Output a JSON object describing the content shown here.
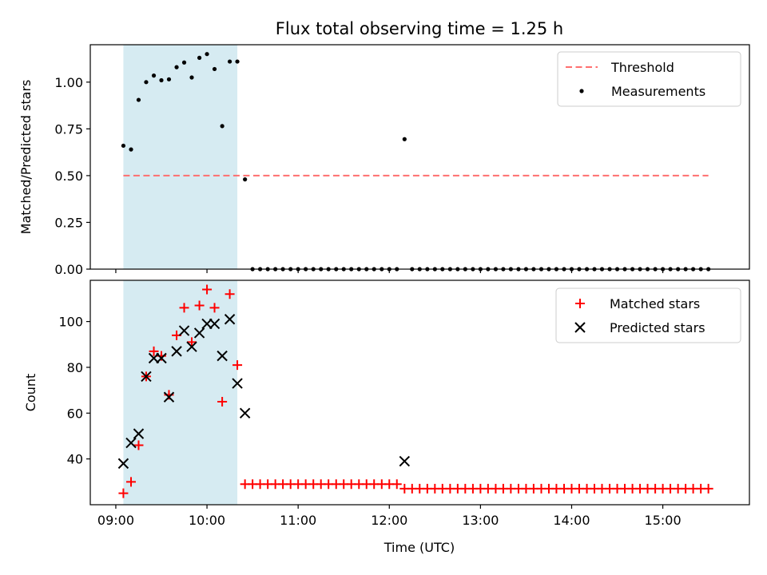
{
  "chart_data": {
    "title": "Flux total observing time = 1.25 h",
    "xlabel": "Time (UTC)",
    "x_unit": "hours (UTC, decimal)",
    "xlim": [
      8.72,
      15.95
    ],
    "xticks": [
      9,
      10,
      11,
      12,
      13,
      14,
      15
    ],
    "xtick_labels": [
      "09:00",
      "10:00",
      "11:00",
      "12:00",
      "13:00",
      "14:00",
      "15:00"
    ],
    "highlight_span": {
      "x0": 9.083,
      "x1": 10.333,
      "color": "#add8e6"
    },
    "panels": [
      {
        "type": "scatter",
        "ylabel": "Matched/Predicted stars",
        "ylim": [
          0,
          1.2
        ],
        "yticks": [
          0.0,
          0.25,
          0.5,
          0.75,
          1.0
        ],
        "ytick_labels": [
          "0.00",
          "0.25",
          "0.50",
          "0.75",
          "1.00"
        ],
        "threshold": {
          "name": "Threshold",
          "value": 0.5,
          "x0": 9.083,
          "x1": 15.5,
          "color": "#ff6f6f"
        },
        "series": [
          {
            "name": "Measurements",
            "marker": "dot",
            "color": "#000000",
            "x": [
              9.083,
              9.167,
              9.25,
              9.333,
              9.417,
              9.5,
              9.583,
              9.667,
              9.75,
              9.833,
              9.917,
              10.0,
              10.083,
              10.167,
              10.25,
              10.333,
              10.417,
              10.5,
              10.583,
              10.667,
              10.75,
              10.833,
              10.917,
              11.0,
              11.083,
              11.167,
              11.25,
              11.333,
              11.417,
              11.5,
              11.583,
              11.667,
              11.75,
              11.833,
              11.917,
              12.0,
              12.083,
              12.167,
              12.25,
              12.333,
              12.417,
              12.5,
              12.583,
              12.667,
              12.75,
              12.833,
              12.917,
              13.0,
              13.083,
              13.167,
              13.25,
              13.333,
              13.417,
              13.5,
              13.583,
              13.667,
              13.75,
              13.833,
              13.917,
              14.0,
              14.083,
              14.167,
              14.25,
              14.333,
              14.417,
              14.5,
              14.583,
              14.667,
              14.75,
              14.833,
              14.917,
              15.0,
              15.083,
              15.167,
              15.25,
              15.333,
              15.417,
              15.5
            ],
            "y": [
              0.66,
              0.64,
              0.905,
              1.0,
              1.035,
              1.01,
              1.015,
              1.08,
              1.105,
              1.025,
              1.13,
              1.15,
              1.07,
              0.765,
              1.11,
              1.11,
              0.48,
              0,
              0,
              0,
              0,
              0,
              0,
              0,
              0,
              0,
              0,
              0,
              0,
              0,
              0,
              0,
              0,
              0,
              0,
              0,
              0,
              0.695,
              0,
              0,
              0,
              0,
              0,
              0,
              0,
              0,
              0,
              0,
              0,
              0,
              0,
              0,
              0,
              0,
              0,
              0,
              0,
              0,
              0,
              0,
              0,
              0,
              0,
              0,
              0,
              0,
              0,
              0,
              0,
              0,
              0,
              0,
              0,
              0,
              0,
              0,
              0,
              0
            ]
          }
        ],
        "legend": {
          "placement": "top-right",
          "entries": [
            "Threshold",
            "Measurements"
          ]
        }
      },
      {
        "type": "scatter",
        "ylabel": "Count",
        "ylim": [
          20,
          118
        ],
        "yticks": [
          40,
          60,
          80,
          100
        ],
        "ytick_labels": [
          "40",
          "60",
          "80",
          "100"
        ],
        "series": [
          {
            "name": "Matched stars",
            "marker": "plus",
            "color": "#ff0000",
            "x": [
              9.083,
              9.167,
              9.25,
              9.333,
              9.417,
              9.5,
              9.583,
              9.667,
              9.75,
              9.833,
              9.917,
              10.0,
              10.083,
              10.167,
              10.25,
              10.333,
              10.417,
              10.5,
              10.583,
              10.667,
              10.75,
              10.833,
              10.917,
              11.0,
              11.083,
              11.167,
              11.25,
              11.333,
              11.417,
              11.5,
              11.583,
              11.667,
              11.75,
              11.833,
              11.917,
              12.0,
              12.083,
              12.167,
              12.25,
              12.333,
              12.417,
              12.5,
              12.583,
              12.667,
              12.75,
              12.833,
              12.917,
              13.0,
              13.083,
              13.167,
              13.25,
              13.333,
              13.417,
              13.5,
              13.583,
              13.667,
              13.75,
              13.833,
              13.917,
              14.0,
              14.083,
              14.167,
              14.25,
              14.333,
              14.417,
              14.5,
              14.583,
              14.667,
              14.75,
              14.833,
              14.917,
              15.0,
              15.083,
              15.167,
              15.25,
              15.333,
              15.417,
              15.5
            ],
            "y": [
              25,
              30,
              46,
              76,
              87,
              85,
              68,
              94,
              106,
              91,
              107,
              114,
              106,
              65,
              112,
              81,
              29,
              29,
              29,
              29,
              29,
              29,
              29,
              29,
              29,
              29,
              29,
              29,
              29,
              29,
              29,
              29,
              29,
              29,
              29,
              29,
              29,
              27,
              27,
              27,
              27,
              27,
              27,
              27,
              27,
              27,
              27,
              27,
              27,
              27,
              27,
              27,
              27,
              27,
              27,
              27,
              27,
              27,
              27,
              27,
              27,
              27,
              27,
              27,
              27,
              27,
              27,
              27,
              27,
              27,
              27,
              27,
              27,
              27,
              27,
              27,
              27,
              27
            ]
          },
          {
            "name": "Predicted stars",
            "marker": "x",
            "color": "#000000",
            "x": [
              9.083,
              9.167,
              9.25,
              9.333,
              9.417,
              9.5,
              9.583,
              9.667,
              9.75,
              9.833,
              9.917,
              10.0,
              10.083,
              10.167,
              10.25,
              10.333,
              10.417,
              12.167
            ],
            "y": [
              38,
              47,
              51,
              76,
              84,
              84,
              67,
              87,
              96,
              89,
              95,
              99,
              99,
              85,
              101,
              73,
              60,
              39
            ]
          }
        ],
        "legend": {
          "placement": "top-right",
          "entries": [
            "Matched stars",
            "Predicted stars"
          ]
        }
      }
    ]
  }
}
